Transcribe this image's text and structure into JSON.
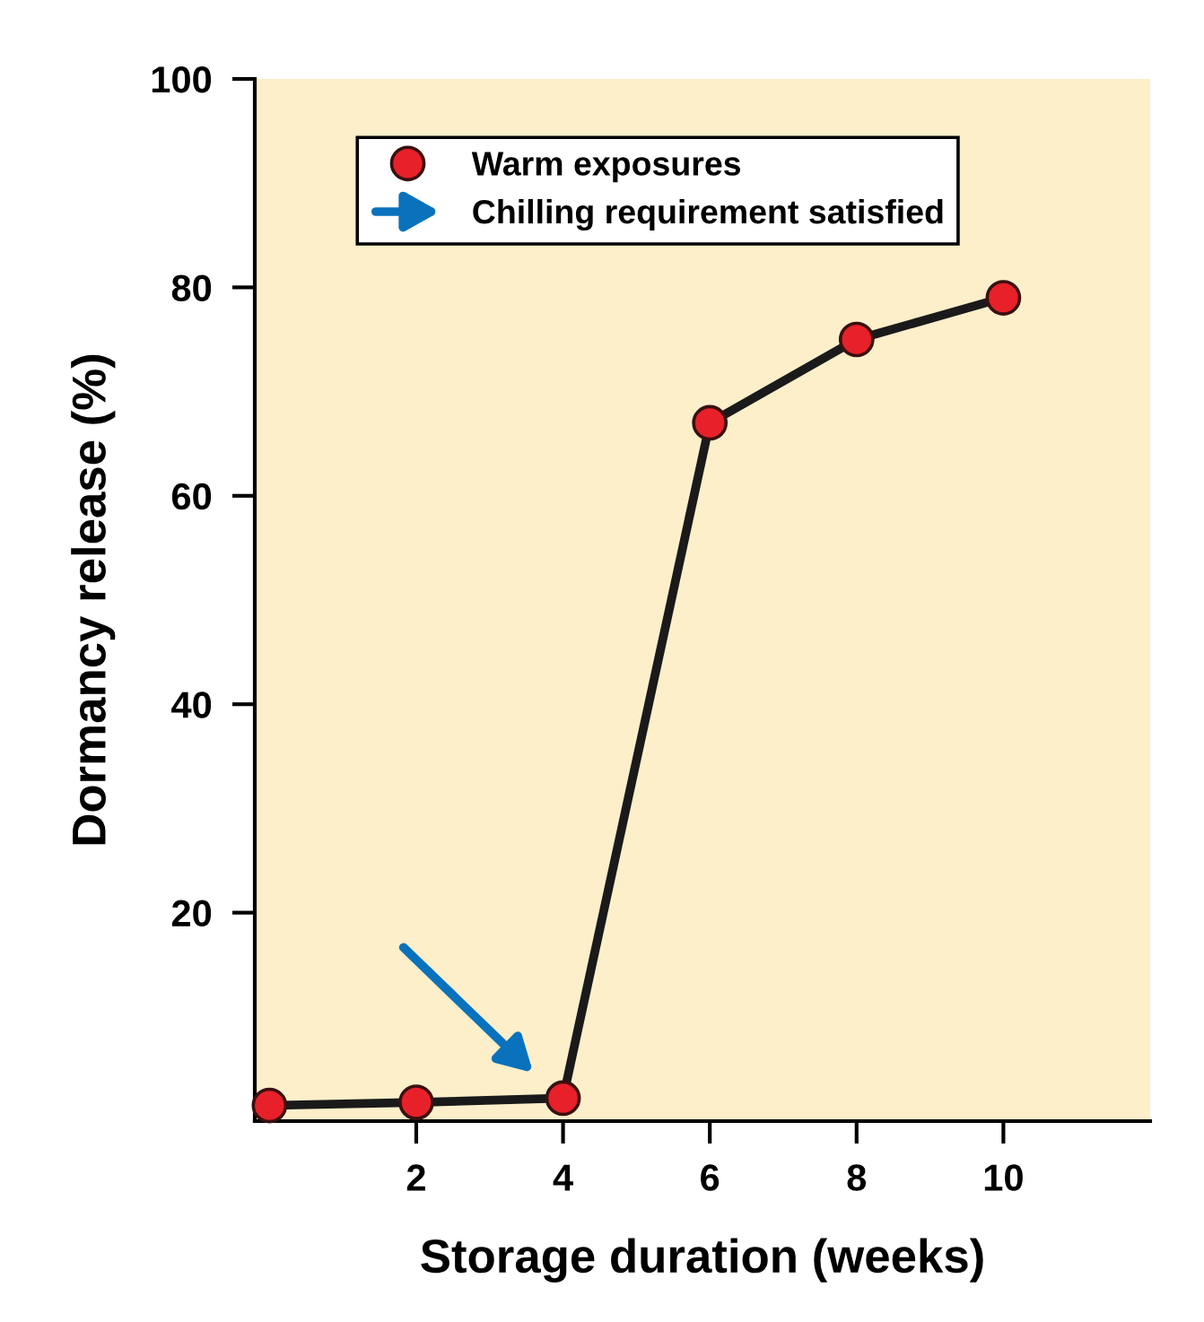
{
  "chart_data": {
    "type": "line",
    "xlabel": "Storage duration (weeks)",
    "ylabel": "Dormancy release (%)",
    "x": [
      0,
      2,
      4,
      6,
      8,
      10
    ],
    "series": [
      {
        "name": "Warm exposures",
        "color": "#e8202a",
        "values": [
          1.5,
          1.8,
          2.2,
          67,
          75,
          79
        ]
      }
    ],
    "annotations": [
      "Chilling requirement satisfied"
    ],
    "xlim": [
      -0.2,
      12
    ],
    "ylim": [
      0,
      100
    ],
    "xticks": [
      2,
      4,
      6,
      8,
      10
    ],
    "yticks": [
      20,
      40,
      60,
      80,
      100
    ],
    "marker": "circle",
    "line_style": "solid",
    "grid": false,
    "legend": "top"
  }
}
